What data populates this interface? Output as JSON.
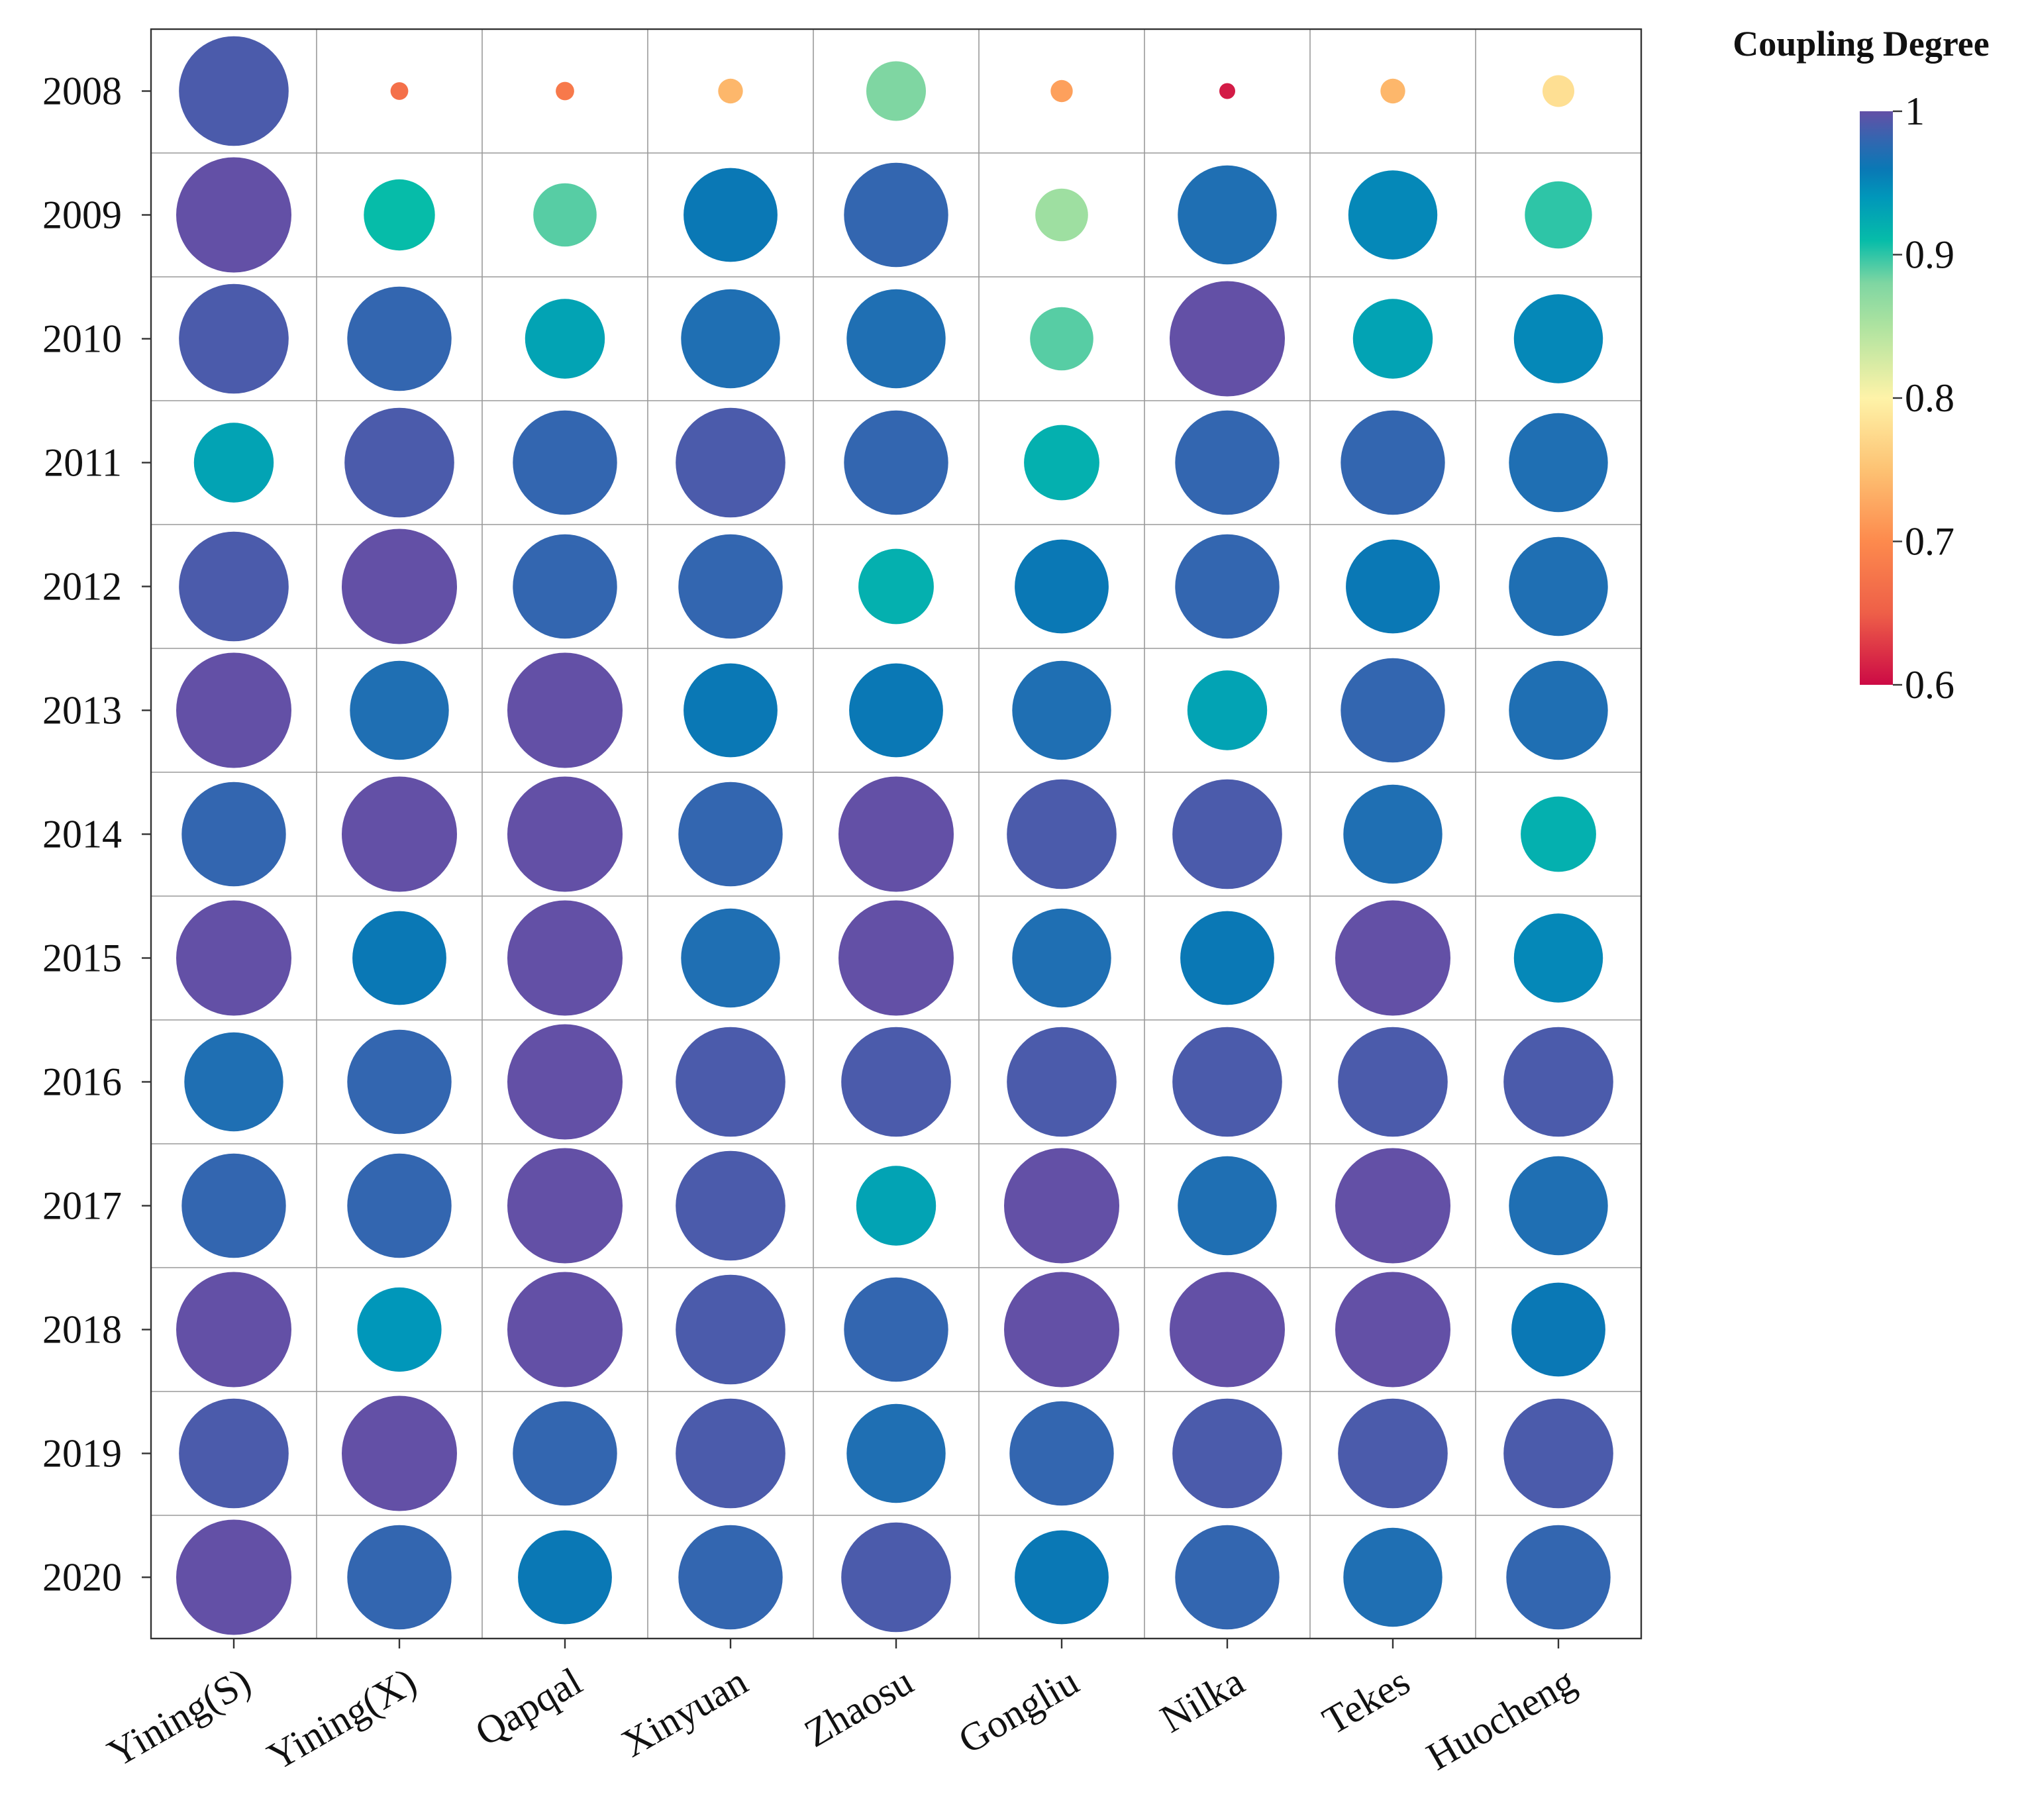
{
  "chart_data": {
    "type": "bubble-heatmap",
    "title": "",
    "xlabel": "",
    "ylabel": "",
    "categories_x": [
      "Yining(S)",
      "Yining(X)",
      "Qapqal",
      "Xinyuan",
      "Zhaosu",
      "Gongliu",
      "Nilka",
      "Tekes",
      "Huocheng"
    ],
    "categories_y": [
      "2008",
      "2009",
      "2010",
      "2011",
      "2012",
      "2013",
      "2014",
      "2015",
      "2016",
      "2017",
      "2018",
      "2019",
      "2020"
    ],
    "values": [
      [
        0.99,
        0.67,
        0.68,
        0.74,
        0.88,
        0.72,
        0.61,
        0.74,
        0.78
      ],
      [
        1.0,
        0.91,
        0.89,
        0.96,
        0.98,
        0.86,
        0.97,
        0.95,
        0.9
      ],
      [
        0.99,
        0.98,
        0.93,
        0.97,
        0.97,
        0.89,
        1.0,
        0.93,
        0.95
      ],
      [
        0.93,
        0.99,
        0.98,
        0.99,
        0.98,
        0.92,
        0.98,
        0.98,
        0.97
      ],
      [
        0.99,
        1.0,
        0.98,
        0.98,
        0.92,
        0.96,
        0.98,
        0.96,
        0.97
      ],
      [
        1.0,
        0.97,
        1.0,
        0.96,
        0.96,
        0.97,
        0.93,
        0.98,
        0.97
      ],
      [
        0.98,
        1.0,
        1.0,
        0.98,
        1.0,
        0.99,
        0.99,
        0.97,
        0.92
      ],
      [
        1.0,
        0.96,
        1.0,
        0.97,
        1.0,
        0.97,
        0.96,
        1.0,
        0.95
      ],
      [
        0.97,
        0.98,
        1.0,
        0.99,
        0.99,
        0.99,
        0.99,
        0.99,
        0.99
      ],
      [
        0.98,
        0.98,
        1.0,
        0.99,
        0.93,
        1.0,
        0.97,
        1.0,
        0.97
      ],
      [
        1.0,
        0.94,
        1.0,
        0.99,
        0.98,
        1.0,
        1.0,
        1.0,
        0.96
      ],
      [
        0.99,
        1.0,
        0.98,
        0.99,
        0.97,
        0.98,
        0.99,
        0.99,
        0.99
      ],
      [
        1.0,
        0.98,
        0.96,
        0.98,
        0.99,
        0.96,
        0.98,
        0.97,
        0.98
      ]
    ],
    "size_encodes": "Coupling Degree",
    "color_encodes": "Coupling Degree",
    "colorbar": {
      "title": "Coupling Degree",
      "range": [
        0.6,
        1
      ],
      "ticks": [
        1,
        0.9,
        0.8,
        0.7,
        0.6
      ],
      "tick_labels": [
        "1",
        "0.9",
        "0.8",
        "0.7",
        "0.6"
      ],
      "colormap": "Spectral",
      "stops": [
        {
          "v": 0.6,
          "color": "#cc0a45"
        },
        {
          "v": 0.65,
          "color": "#ee5f48"
        },
        {
          "v": 0.7,
          "color": "#fd8a4d"
        },
        {
          "v": 0.75,
          "color": "#fdc273"
        },
        {
          "v": 0.8,
          "color": "#fef3a8"
        },
        {
          "v": 0.85,
          "color": "#aee3a0"
        },
        {
          "v": 0.88,
          "color": "#7fd6a2"
        },
        {
          "v": 0.91,
          "color": "#06bca9"
        },
        {
          "v": 0.94,
          "color": "#0097ba"
        },
        {
          "v": 0.96,
          "color": "#0a78b5"
        },
        {
          "v": 0.98,
          "color": "#3366b0"
        },
        {
          "v": 1.0,
          "color": "#6350a6"
        }
      ]
    },
    "grid": true
  }
}
